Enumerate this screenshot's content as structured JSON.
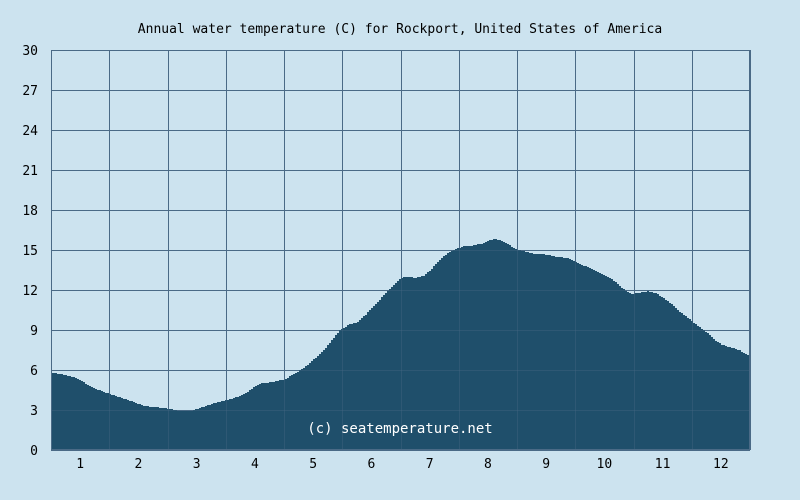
{
  "chart_data": {
    "type": "area",
    "title": "Annual water temperature (C) for Rockport, United States of America",
    "watermark": "(c) seatemperature.net",
    "xlabel": "",
    "ylabel": "",
    "x_ticks": [
      "1",
      "2",
      "3",
      "4",
      "5",
      "6",
      "7",
      "8",
      "9",
      "10",
      "11",
      "12"
    ],
    "y_ticks": [
      "0",
      "3",
      "6",
      "9",
      "12",
      "15",
      "18",
      "21",
      "24",
      "27",
      "30"
    ],
    "xlim": [
      0.5,
      12.5
    ],
    "ylim": [
      0,
      30
    ],
    "grid": true,
    "colors": {
      "background": "#cce3ef",
      "fill": "#1f4f6b",
      "grid": "#4a6a86",
      "watermark": "#ffffff"
    },
    "series": [
      {
        "x": [
          0.5,
          0.65,
          0.85,
          1.0,
          1.15,
          1.3,
          1.5,
          1.7,
          1.9,
          2.1,
          2.3,
          2.5,
          2.6,
          2.75,
          2.9,
          3.0,
          3.15,
          3.35,
          3.55,
          3.7,
          3.85,
          4.0,
          4.1,
          4.3,
          4.5,
          4.7,
          4.9,
          5.0,
          5.15,
          5.3,
          5.45,
          5.6,
          5.75,
          5.9,
          6.05,
          6.2,
          6.35,
          6.5,
          6.6,
          6.75,
          6.9,
          7.0,
          7.15,
          7.3,
          7.45,
          7.6,
          7.75,
          7.9,
          8.0,
          8.1,
          8.2,
          8.3,
          8.45,
          8.6,
          8.8,
          9.0,
          9.15,
          9.35,
          9.5,
          9.7,
          9.9,
          10.0,
          10.15,
          10.3,
          10.45,
          10.6,
          10.75,
          10.9,
          11.0,
          11.15,
          11.3,
          11.45,
          11.6,
          11.75,
          11.9,
          12.0,
          12.15,
          12.3,
          12.5
        ],
        "y": [
          5.8,
          5.7,
          5.5,
          5.2,
          4.8,
          4.5,
          4.2,
          3.9,
          3.6,
          3.3,
          3.2,
          3.1,
          3.0,
          2.9,
          2.95,
          3.1,
          3.3,
          3.6,
          3.8,
          4.0,
          4.3,
          4.8,
          5.0,
          5.1,
          5.3,
          5.8,
          6.4,
          6.8,
          7.4,
          8.2,
          9.0,
          9.4,
          9.6,
          10.2,
          10.9,
          11.6,
          12.3,
          12.9,
          13.0,
          12.9,
          13.1,
          13.5,
          14.2,
          14.8,
          15.1,
          15.3,
          15.35,
          15.5,
          15.7,
          15.8,
          15.75,
          15.55,
          15.1,
          14.9,
          14.7,
          14.65,
          14.5,
          14.4,
          14.1,
          13.7,
          13.3,
          13.1,
          12.7,
          12.1,
          11.7,
          11.8,
          11.9,
          11.7,
          11.4,
          10.9,
          10.3,
          9.8,
          9.3,
          8.8,
          8.2,
          7.9,
          7.7,
          7.5,
          7.0
        ]
      }
    ]
  }
}
